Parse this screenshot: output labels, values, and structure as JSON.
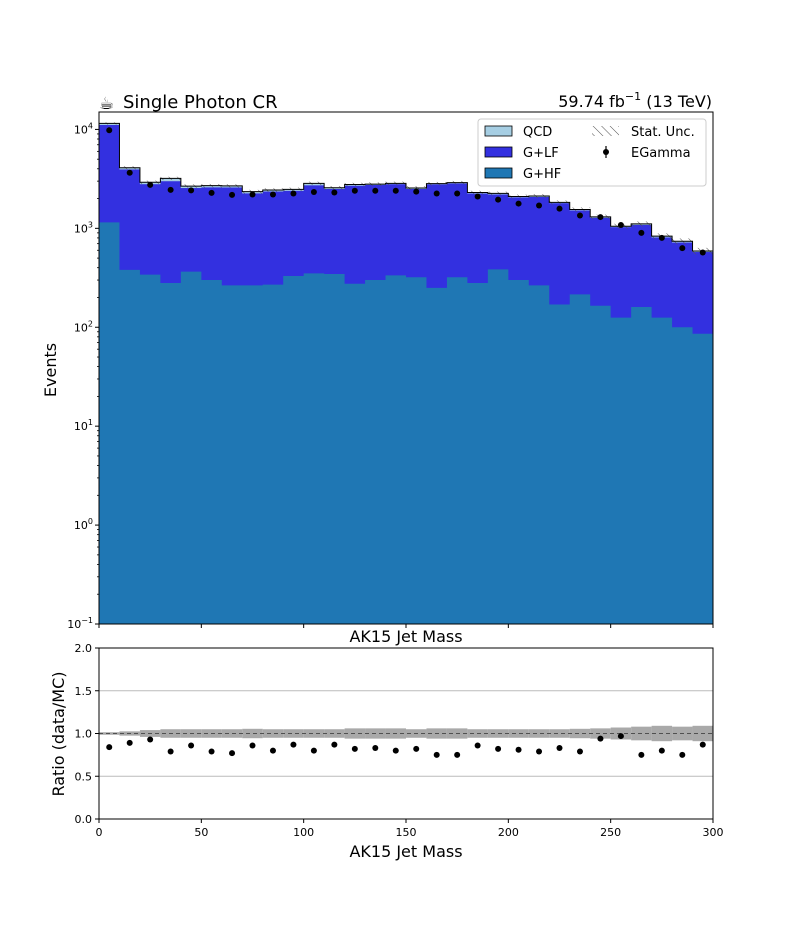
{
  "header": {
    "icon": "coffee-icon",
    "icon_glyph": "☕",
    "title": "Single Photon CR",
    "lumi": "59.74 fb",
    "lumi_exp": "−1",
    "energy": " (13 TeV)"
  },
  "chart_data": [
    {
      "type": "area",
      "stacked": true,
      "title": "",
      "xlabel": "AK15 Jet Mass",
      "ylabel": "Events",
      "yscale": "log",
      "xlim": [
        0,
        300
      ],
      "ylim": [
        0.1,
        15000
      ],
      "bin_edges": [
        0,
        10,
        20,
        30,
        40,
        50,
        60,
        70,
        80,
        90,
        100,
        110,
        120,
        130,
        140,
        150,
        160,
        170,
        180,
        190,
        200,
        210,
        220,
        230,
        240,
        250,
        260,
        270,
        280,
        290,
        300
      ],
      "y_ticks": [
        {
          "value": 0.1,
          "label": "10",
          "exp": "−1"
        },
        {
          "value": 1,
          "label": "10",
          "exp": "0"
        },
        {
          "value": 10,
          "label": "10",
          "exp": "1"
        },
        {
          "value": 100,
          "label": "10",
          "exp": "2"
        },
        {
          "value": 1000,
          "label": "10",
          "exp": "3"
        },
        {
          "value": 10000,
          "label": "10",
          "exp": "4"
        }
      ],
      "series": [
        {
          "name": "G+HF",
          "color": "#1f77b4",
          "values": [
            1150,
            380,
            340,
            280,
            365,
            300,
            265,
            265,
            270,
            330,
            350,
            345,
            275,
            300,
            335,
            320,
            250,
            320,
            280,
            385,
            300,
            265,
            170,
            215,
            165,
            125,
            160,
            125,
            100,
            86
          ]
        },
        {
          "name": "G+LF",
          "color": "#3330e0",
          "values": [
            9950,
            3570,
            2460,
            2720,
            2190,
            2300,
            2330,
            1995,
            2090,
            2070,
            2380,
            2155,
            2425,
            2450,
            2465,
            2180,
            2540,
            2530,
            1970,
            1820,
            1760,
            1810,
            1630,
            1305,
            1115,
            905,
            925,
            685,
            620,
            490
          ]
        },
        {
          "name": "QCD",
          "color": "#a6cee3",
          "values": [
            400,
            150,
            120,
            200,
            120,
            100,
            90,
            90,
            80,
            80,
            120,
            70,
            75,
            50,
            50,
            60,
            40,
            50,
            50,
            50,
            40,
            50,
            30,
            30,
            25,
            20,
            25,
            25,
            20,
            14
          ]
        }
      ],
      "data": {
        "name": "EGamma",
        "values": [
          9800,
          3650,
          2750,
          2450,
          2420,
          2280,
          2180,
          2200,
          2200,
          2250,
          2330,
          2300,
          2400,
          2400,
          2400,
          2350,
          2250,
          2250,
          2100,
          1950,
          1780,
          1700,
          1580,
          1350,
          1300,
          1080,
          900,
          800,
          630,
          570
        ]
      },
      "stat_unc_label": "Stat. Unc.",
      "legend_position": "top-right",
      "legend": [
        "QCD",
        "G+LF",
        "G+HF",
        "Stat. Unc.",
        "EGamma"
      ]
    },
    {
      "type": "scatter",
      "xlabel": "AK15 Jet Mass",
      "ylabel": "Ratio (data/MC)",
      "xlim": [
        0,
        300
      ],
      "ylim": [
        0.0,
        2.0
      ],
      "x_ticks": [
        0,
        50,
        100,
        150,
        200,
        250,
        300
      ],
      "y_ticks": [
        "0.0",
        "0.5",
        "1.0",
        "1.5",
        "2.0"
      ],
      "grid": "horizontal",
      "x": [
        5,
        15,
        25,
        35,
        45,
        55,
        65,
        75,
        85,
        95,
        105,
        115,
        125,
        135,
        145,
        155,
        165,
        175,
        185,
        195,
        205,
        215,
        225,
        235,
        245,
        255,
        265,
        275,
        285,
        295
      ],
      "values": [
        0.84,
        0.89,
        0.93,
        0.79,
        0.86,
        0.79,
        0.77,
        0.86,
        0.8,
        0.87,
        0.8,
        0.87,
        0.82,
        0.83,
        0.8,
        0.82,
        0.75,
        0.75,
        0.86,
        0.82,
        0.81,
        0.79,
        0.83,
        0.79,
        0.94,
        0.97,
        0.75,
        0.8,
        0.75,
        0.87
      ],
      "unc_band": [
        0.015,
        0.025,
        0.04,
        0.05,
        0.05,
        0.05,
        0.05,
        0.055,
        0.05,
        0.05,
        0.05,
        0.05,
        0.06,
        0.06,
        0.06,
        0.05,
        0.06,
        0.06,
        0.05,
        0.05,
        0.05,
        0.05,
        0.05,
        0.055,
        0.06,
        0.07,
        0.08,
        0.09,
        0.08,
        0.09
      ]
    }
  ]
}
